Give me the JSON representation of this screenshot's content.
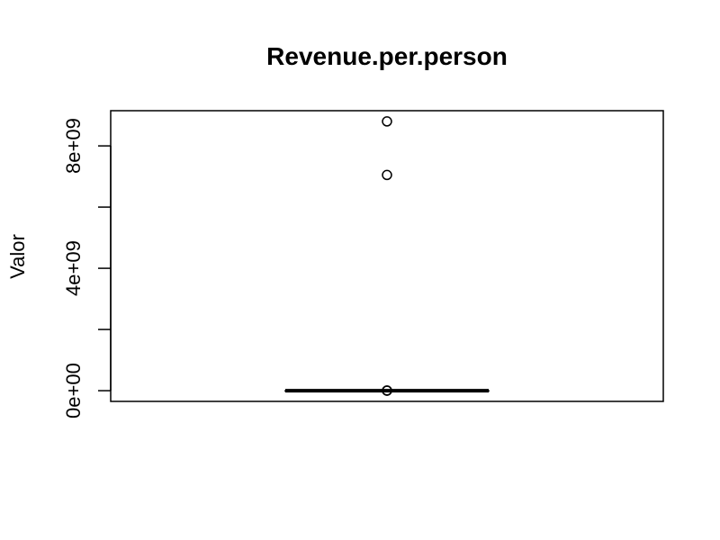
{
  "chart_data": {
    "type": "boxplot",
    "title": "Revenue.per.person",
    "xlabel": "",
    "ylabel": "Valor",
    "ylim": [
      -350000000,
      9150000000
    ],
    "yticks": [
      0,
      2000000000,
      4000000000,
      6000000000,
      8000000000
    ],
    "ytick_labels": [
      "0e+00",
      "4e+09",
      "8e+09"
    ],
    "labeled_ticks": [
      0,
      4000000000,
      8000000000
    ],
    "box": {
      "min": 0,
      "q1": 0,
      "median": 0,
      "q3": 0,
      "max": 0
    },
    "outliers": [
      8800000000,
      7050000000,
      5000000,
      0
    ],
    "grid": false
  }
}
